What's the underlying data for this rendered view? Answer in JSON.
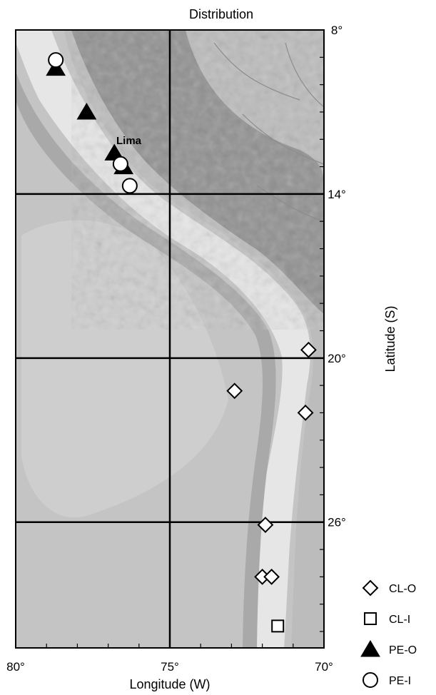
{
  "title": "Distribution",
  "axes": {
    "x": {
      "label": "Longitude (W)",
      "ticks": [
        80,
        75,
        70
      ],
      "range": [
        80,
        70
      ]
    },
    "y": {
      "label": "Latitude (S)",
      "ticks": [
        8,
        14,
        20,
        26
      ],
      "range": [
        8,
        30.6
      ]
    }
  },
  "place_labels": [
    {
      "name": "Lima",
      "lon": 77.0,
      "lat": 12.0
    }
  ],
  "grid": {
    "longitudes": [
      75
    ],
    "latitudes": [
      14,
      20,
      26
    ]
  },
  "legend": [
    {
      "key": "CL-O",
      "label": "CL-O",
      "marker": "diamond-open"
    },
    {
      "key": "CL-I",
      "label": "CL-I",
      "marker": "square-open"
    },
    {
      "key": "PE-O",
      "label": "PE-O",
      "marker": "triangle-filled"
    },
    {
      "key": "PE-I",
      "label": "PE-I",
      "marker": "circle-open"
    }
  ],
  "points": [
    {
      "group": "PE-O",
      "lon": 78.7,
      "lat": 9.4
    },
    {
      "group": "PE-I",
      "lon": 78.7,
      "lat": 9.1
    },
    {
      "group": "PE-O",
      "lon": 77.7,
      "lat": 11.0
    },
    {
      "group": "PE-O",
      "lon": 76.8,
      "lat": 12.5
    },
    {
      "group": "PE-O",
      "lon": 76.5,
      "lat": 13.0
    },
    {
      "group": "PE-I",
      "lon": 76.6,
      "lat": 12.9
    },
    {
      "group": "PE-I",
      "lon": 76.3,
      "lat": 13.7
    },
    {
      "group": "CL-O",
      "lon": 70.5,
      "lat": 19.7
    },
    {
      "group": "CL-O",
      "lon": 72.9,
      "lat": 21.2
    },
    {
      "group": "CL-O",
      "lon": 70.6,
      "lat": 22.0
    },
    {
      "group": "CL-O",
      "lon": 71.9,
      "lat": 26.1
    },
    {
      "group": "CL-O",
      "lon": 72.0,
      "lat": 28.0
    },
    {
      "group": "CL-O",
      "lon": 71.7,
      "lat": 28.0
    },
    {
      "group": "CL-I",
      "lon": 71.5,
      "lat": 29.8
    }
  ],
  "colors": {
    "ocean": "#c4c4c4",
    "ocean_shelf": "#e6e6e6",
    "trench": "#a9a9a9",
    "land": "#bcbcbc",
    "andes": "#6e6e6e",
    "grid": "#000000",
    "marker_fill_open": "#ffffff",
    "marker_stroke": "#000000"
  }
}
